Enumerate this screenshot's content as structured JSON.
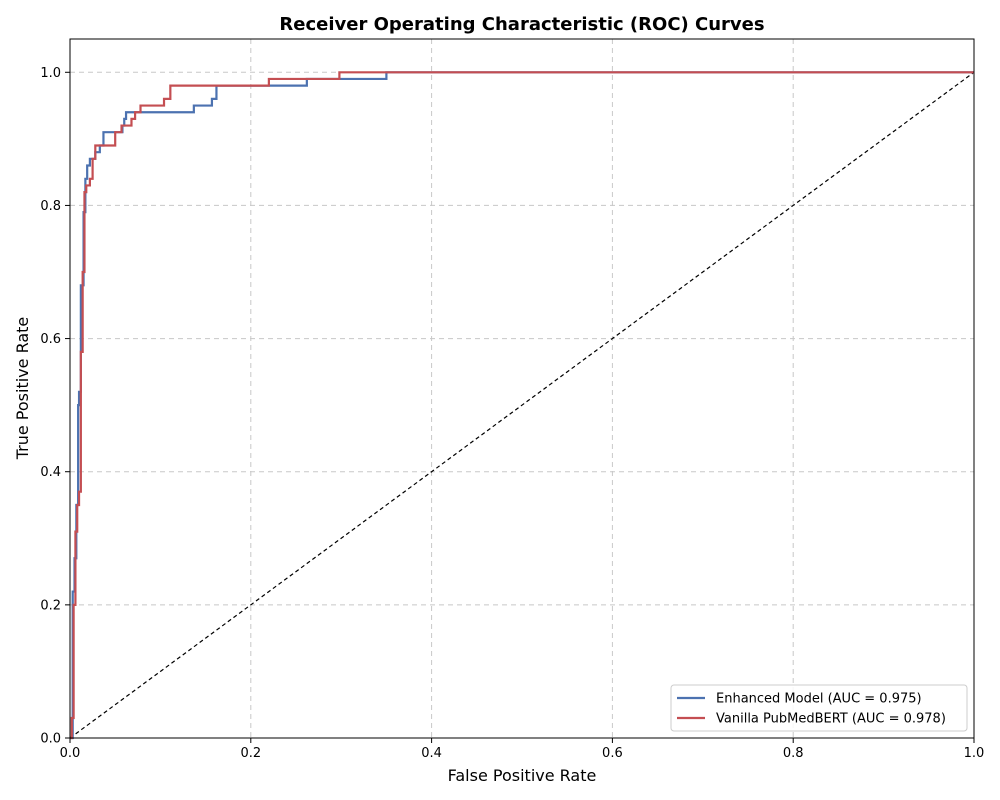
{
  "chart_data": {
    "type": "line",
    "title": "Receiver Operating Characteristic (ROC) Curves",
    "xlabel": "False Positive Rate",
    "ylabel": "True Positive Rate",
    "xlim": [
      0,
      1
    ],
    "ylim": [
      0,
      1.05
    ],
    "xticks": [
      "0.0",
      "0.2",
      "0.4",
      "0.6",
      "0.8",
      "1.0"
    ],
    "yticks": [
      "0.0",
      "0.2",
      "0.4",
      "0.6",
      "0.8",
      "1.0"
    ],
    "grid": true,
    "legend_position": "bottom-right",
    "reference_line": {
      "x": [
        0,
        1
      ],
      "y": [
        0,
        1
      ],
      "color": "#000000",
      "style": "dashed"
    },
    "series": [
      {
        "name": "Enhanced Model (AUC = 0.975)",
        "color": "#4c72b0",
        "x": [
          0.0,
          0.003,
          0.003,
          0.005,
          0.005,
          0.007,
          0.007,
          0.009,
          0.009,
          0.01,
          0.01,
          0.012,
          0.012,
          0.015,
          0.015,
          0.017,
          0.017,
          0.019,
          0.019,
          0.021,
          0.021,
          0.022,
          0.022,
          0.028,
          0.028,
          0.033,
          0.033,
          0.037,
          0.037,
          0.046,
          0.046,
          0.058,
          0.058,
          0.06,
          0.06,
          0.062,
          0.062,
          0.137,
          0.137,
          0.157,
          0.157,
          0.162,
          0.162,
          0.262,
          0.262,
          0.35,
          0.35,
          1.0
        ],
        "y": [
          0.0,
          0.0,
          0.22,
          0.22,
          0.27,
          0.27,
          0.35,
          0.35,
          0.5,
          0.5,
          0.52,
          0.52,
          0.68,
          0.68,
          0.79,
          0.79,
          0.84,
          0.84,
          0.86,
          0.86,
          0.86,
          0.86,
          0.87,
          0.87,
          0.88,
          0.88,
          0.89,
          0.89,
          0.91,
          0.91,
          0.91,
          0.91,
          0.92,
          0.92,
          0.93,
          0.93,
          0.94,
          0.94,
          0.95,
          0.95,
          0.96,
          0.96,
          0.98,
          0.98,
          0.99,
          0.99,
          1.0,
          1.0
        ]
      },
      {
        "name": "Vanilla PubMedBERT (AUC = 0.978)",
        "color": "#c44e52",
        "x": [
          0.0,
          0.002,
          0.002,
          0.004,
          0.004,
          0.006,
          0.006,
          0.008,
          0.008,
          0.01,
          0.01,
          0.012,
          0.012,
          0.014,
          0.014,
          0.016,
          0.016,
          0.018,
          0.018,
          0.022,
          0.022,
          0.025,
          0.025,
          0.028,
          0.028,
          0.05,
          0.05,
          0.057,
          0.057,
          0.068,
          0.068,
          0.072,
          0.072,
          0.078,
          0.078,
          0.104,
          0.104,
          0.111,
          0.111,
          0.22,
          0.22,
          0.298,
          0.298,
          1.0
        ],
        "y": [
          0.0,
          0.0,
          0.03,
          0.03,
          0.2,
          0.2,
          0.31,
          0.31,
          0.35,
          0.35,
          0.37,
          0.37,
          0.58,
          0.58,
          0.7,
          0.7,
          0.82,
          0.82,
          0.83,
          0.83,
          0.84,
          0.84,
          0.87,
          0.87,
          0.89,
          0.89,
          0.91,
          0.91,
          0.92,
          0.92,
          0.93,
          0.93,
          0.94,
          0.94,
          0.95,
          0.95,
          0.96,
          0.96,
          0.98,
          0.98,
          0.99,
          0.99,
          1.0,
          1.0
        ]
      }
    ]
  }
}
